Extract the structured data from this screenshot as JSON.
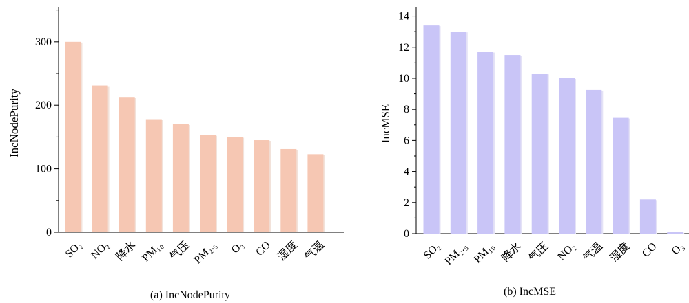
{
  "chart_data": [
    {
      "type": "bar",
      "categories": [
        "SO₂",
        "NO₂",
        "降水",
        "PM₁₀",
        "气压",
        "PM₂.₅",
        "O₃",
        "CO",
        "湿度",
        "气温"
      ],
      "values": [
        300,
        231,
        213,
        178,
        170,
        153,
        150,
        145,
        131,
        123
      ],
      "title": "",
      "xlabel": "",
      "ylabel": "IncNodePurity",
      "ylim": [
        0,
        355
      ],
      "yticks": [
        0,
        100,
        200,
        300
      ],
      "grid": false,
      "caption": "(a) IncNodePurity",
      "bar_color": "#f6c7b3",
      "bar_shadow_color": "#f2e2da"
    },
    {
      "type": "bar",
      "categories": [
        "SO₂",
        "PM₂.₅",
        "PM₁₀",
        "降水",
        "气压",
        "NO₂",
        "气温",
        "湿度",
        "CO",
        "O₃"
      ],
      "values": [
        13.4,
        13.0,
        11.7,
        11.5,
        10.3,
        10.0,
        9.25,
        7.45,
        2.2,
        0.1
      ],
      "title": "",
      "xlabel": "",
      "ylabel": "IncMSE",
      "ylim": [
        0,
        14.6
      ],
      "yticks": [
        0,
        2,
        4,
        6,
        8,
        10,
        12,
        14
      ],
      "grid": false,
      "caption": "(b) IncMSE",
      "bar_color": "#c9c5f7",
      "bar_shadow_color": "#e4e2f6"
    }
  ]
}
